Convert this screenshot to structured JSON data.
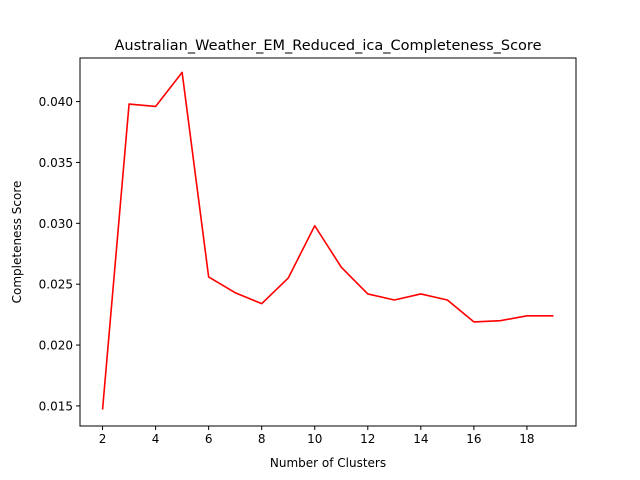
{
  "chart_data": {
    "type": "line",
    "title": "Australian_Weather_EM_Reduced_ica_Completeness_Score",
    "xlabel": "Number of Clusters",
    "ylabel": "Completeness Score",
    "xlim": [
      1.15,
      19.85
    ],
    "ylim": [
      0.01335,
      0.04358
    ],
    "xticks": [
      2,
      4,
      6,
      8,
      10,
      12,
      14,
      16,
      18
    ],
    "xtick_labels": [
      "2",
      "4",
      "6",
      "8",
      "10",
      "12",
      "14",
      "16",
      "18"
    ],
    "yticks": [
      0.015,
      0.02,
      0.025,
      0.03,
      0.035,
      0.04
    ],
    "ytick_labels": [
      "0.015",
      "0.020",
      "0.025",
      "0.030",
      "0.035",
      "0.040"
    ],
    "grid": false,
    "series": [
      {
        "color": "#ff0000",
        "x": [
          2,
          3,
          4,
          5,
          6,
          7,
          8,
          9,
          10,
          11,
          12,
          13,
          14,
          15,
          16,
          17,
          18,
          19
        ],
        "values": [
          0.0147,
          0.0398,
          0.0396,
          0.0424,
          0.0256,
          0.0243,
          0.0234,
          0.0255,
          0.0298,
          0.0264,
          0.0242,
          0.0237,
          0.0242,
          0.0237,
          0.0219,
          0.022,
          0.0224,
          0.0224
        ]
      }
    ]
  }
}
